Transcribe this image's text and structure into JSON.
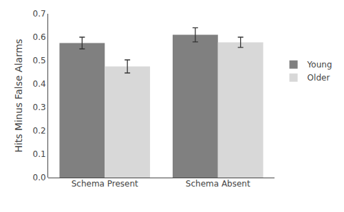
{
  "chart_data": {
    "type": "bar",
    "categories": [
      "Schema Present",
      "Schema Absent"
    ],
    "series": [
      {
        "name": "Young",
        "color": "#808080",
        "values": [
          0.575,
          0.61
        ],
        "errors": [
          0.025,
          0.03
        ]
      },
      {
        "name": "Older",
        "color": "#d8d8d8",
        "values": [
          0.475,
          0.578
        ],
        "errors": [
          0.028,
          0.022
        ]
      }
    ],
    "ylabel": "Hits Minus False Alarms",
    "ylim": [
      0.0,
      0.7
    ],
    "yticks": [
      {
        "value": 0.0,
        "label": "0.0"
      },
      0.1,
      0.2,
      0.3,
      0.4,
      0.5,
      0.6,
      0.7
    ],
    "grid": false,
    "legend": "right"
  }
}
